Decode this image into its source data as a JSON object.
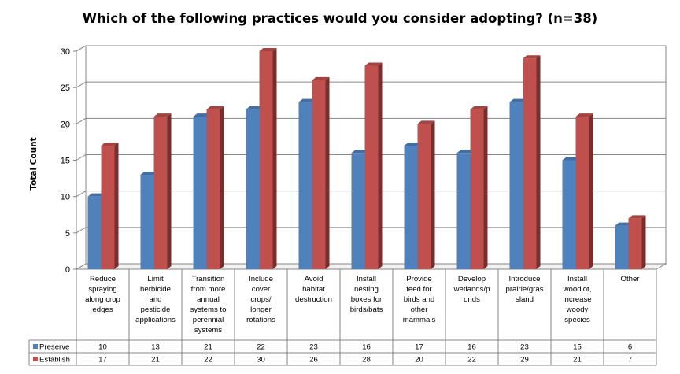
{
  "chart_data": {
    "type": "bar",
    "title": "Which of the following practices would you consider adopting? (n=38)",
    "ylabel": "Total Count",
    "xlabel": "",
    "ylim": [
      0,
      30
    ],
    "yticks": [
      0,
      5,
      10,
      15,
      20,
      25,
      30
    ],
    "grid": true,
    "categories": [
      [
        "Reduce",
        "spraying",
        "along crop",
        "edges"
      ],
      [
        "Limit",
        "herbicide",
        "and",
        "pesticide",
        "applications"
      ],
      [
        "Transition",
        "from more",
        "annual",
        "systems to",
        "perennial",
        "systems"
      ],
      [
        "Include",
        "cover",
        "crops/",
        "longer",
        "rotations"
      ],
      [
        "Avoid",
        "habitat",
        "destruction"
      ],
      [
        "Install",
        "nesting",
        "boxes for",
        "birds/bats"
      ],
      [
        "Provide",
        "feed for",
        "birds and",
        "other",
        "mammals"
      ],
      [
        "Develop",
        "wetlands/p",
        "onds"
      ],
      [
        "Introduce",
        "prairie/gras",
        "sland"
      ],
      [
        "Install",
        "woodlot,",
        "increase",
        "woody",
        "species"
      ],
      [
        "Other"
      ]
    ],
    "series": [
      {
        "name": "Preserve",
        "color": "#4F81BD",
        "values": [
          10,
          13,
          21,
          22,
          23,
          16,
          17,
          16,
          23,
          15,
          6
        ]
      },
      {
        "name": "Establish",
        "color": "#C0504D",
        "values": [
          17,
          21,
          22,
          30,
          26,
          28,
          20,
          22,
          29,
          21,
          7
        ]
      }
    ],
    "legend": "data-table"
  }
}
